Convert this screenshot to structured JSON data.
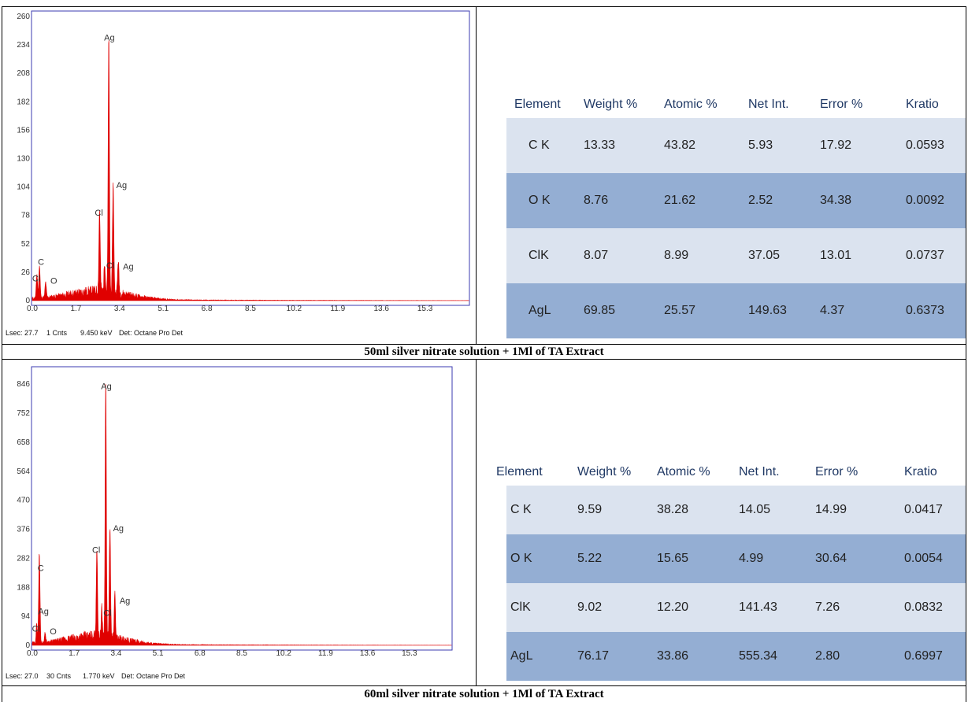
{
  "colors": {
    "spectrum": "#e00000",
    "plot_border": "#3b3bb0",
    "band_light": "#dbe3ef",
    "band_dark": "#94aed3",
    "header_text": "#1f3864"
  },
  "columns": [
    "Element",
    "Weight %",
    "Atomic %",
    "Net Int.",
    "Error %",
    "Kratio"
  ],
  "panels": [
    {
      "caption": "50ml silver nitrate solution + 1Ml of TA Extract",
      "footer": {
        "lsec": "Lsec: 27.7",
        "cnts": "1 Cnts",
        "kev": "9.450 keV",
        "det": "Det: Octane Pro Det"
      },
      "rows": [
        [
          "C K",
          "13.33",
          "43.82",
          "5.93",
          "17.92",
          "0.0593"
        ],
        [
          "O K",
          "8.76",
          "21.62",
          "2.52",
          "34.38",
          "0.0092"
        ],
        [
          "ClK",
          "8.07",
          "8.99",
          "37.05",
          "13.01",
          "0.0737"
        ],
        [
          "AgL",
          "69.85",
          "25.57",
          "149.63",
          "4.37",
          "0.6373"
        ]
      ]
    },
    {
      "caption": "60ml silver nitrate solution + 1Ml of TA Extract",
      "footer": {
        "lsec": "Lsec: 27.0",
        "cnts": "30 Cnts",
        "kev": "1.770 keV",
        "det": "Det: Octane Pro Det"
      },
      "rows": [
        [
          "C K",
          "9.59",
          "38.28",
          "14.05",
          "14.99",
          "0.0417"
        ],
        [
          "O K",
          "5.22",
          "15.65",
          "4.99",
          "30.64",
          "0.0054"
        ],
        [
          "ClK",
          "9.02",
          "12.20",
          "141.43",
          "7.26",
          "0.0832"
        ],
        [
          "AgL",
          "76.17",
          "33.86",
          "555.34",
          "2.80",
          "0.6997"
        ]
      ]
    }
  ],
  "chart_data": [
    {
      "type": "area",
      "xlabel": "",
      "ylabel": "",
      "xticks": [
        "0.0",
        "1.7",
        "3.4",
        "5.1",
        "6.8",
        "8.5",
        "10.2",
        "11.9",
        "13.6",
        "15.3"
      ],
      "yticks": [
        "0",
        "26",
        "52",
        "78",
        "104",
        "130",
        "156",
        "182",
        "208",
        "234",
        "260"
      ],
      "xlim": [
        0,
        17
      ],
      "ylim": [
        0,
        260
      ],
      "peaks": [
        {
          "label": "Cl",
          "x": 0.18,
          "y": 22
        },
        {
          "label": "C",
          "x": 0.28,
          "y": 30
        },
        {
          "label": "O",
          "x": 0.52,
          "y": 14
        },
        {
          "label": "Cl",
          "x": 2.62,
          "y": 75
        },
        {
          "label": "Ag",
          "x": 2.98,
          "y": 235
        },
        {
          "label": "Cl",
          "x": 2.82,
          "y": 28
        },
        {
          "label": "Ag",
          "x": 3.15,
          "y": 100
        },
        {
          "label": "Ag",
          "x": 3.35,
          "y": 30
        }
      ]
    },
    {
      "type": "area",
      "xlabel": "",
      "ylabel": "",
      "xticks": [
        "0.0",
        "1.7",
        "3.4",
        "5.1",
        "6.8",
        "8.5",
        "10.2",
        "11.9",
        "13.6",
        "15.3"
      ],
      "yticks": [
        "0",
        "94",
        "188",
        "282",
        "376",
        "470",
        "564",
        "658",
        "752",
        "846"
      ],
      "xlim": [
        0,
        17
      ],
      "ylim": [
        0,
        900
      ],
      "peaks": [
        {
          "label": "Cl",
          "x": 0.18,
          "y": 60
        },
        {
          "label": "Ag",
          "x": 0.3,
          "y": 90
        },
        {
          "label": "C",
          "x": 0.28,
          "y": 220
        },
        {
          "label": "O",
          "x": 0.52,
          "y": 30
        },
        {
          "label": "Cl",
          "x": 2.62,
          "y": 290
        },
        {
          "label": "Ag",
          "x": 2.98,
          "y": 820
        },
        {
          "label": "Cl",
          "x": 2.82,
          "y": 90
        },
        {
          "label": "Ag",
          "x": 3.15,
          "y": 360
        },
        {
          "label": "Ag",
          "x": 3.35,
          "y": 140
        }
      ]
    }
  ]
}
